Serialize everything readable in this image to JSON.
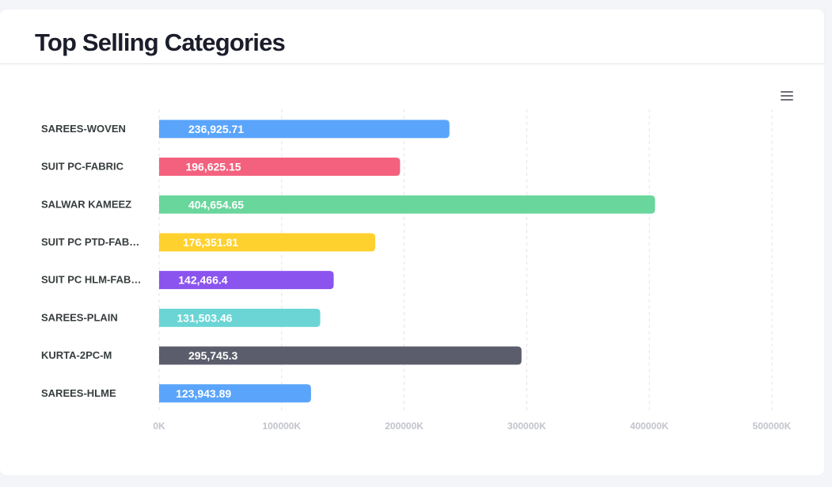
{
  "header": {
    "title": "Top Selling Categories"
  },
  "toolbar": {
    "menu_icon": "hamburger-menu-icon"
  },
  "chart_data": {
    "type": "bar",
    "orientation": "horizontal",
    "title": "Top Selling Categories",
    "categories": [
      "SAREES-WOVEN",
      "SUIT PC-FABRIC",
      "SALWAR KAMEEZ",
      "SUIT PC PTD-FAB…",
      "SUIT PC HLM-FAB…",
      "SAREES-PLAIN",
      "KURTA-2PC-M",
      "SAREES-HLME"
    ],
    "values": [
      236925.71,
      196625.15,
      404654.65,
      176351.81,
      142466.4,
      131503.46,
      295745.3,
      123943.89
    ],
    "value_labels": [
      "236,925.71",
      "196,625.15",
      "404,654.65",
      "176,351.81",
      "142,466.4",
      "131,503.46",
      "295,745.3",
      "123,943.89"
    ],
    "colors": [
      "#5aa5fb",
      "#f4617f",
      "#69d69c",
      "#ffd12e",
      "#8b54ee",
      "#6bd5d5",
      "#5b5d6d",
      "#5aa5fb"
    ],
    "xticks": [
      "0K",
      "100000K",
      "200000K",
      "300000K",
      "400000K",
      "500000K"
    ],
    "xlim": [
      0,
      500000
    ],
    "grid": "vertical-dashed",
    "legend": "none"
  }
}
